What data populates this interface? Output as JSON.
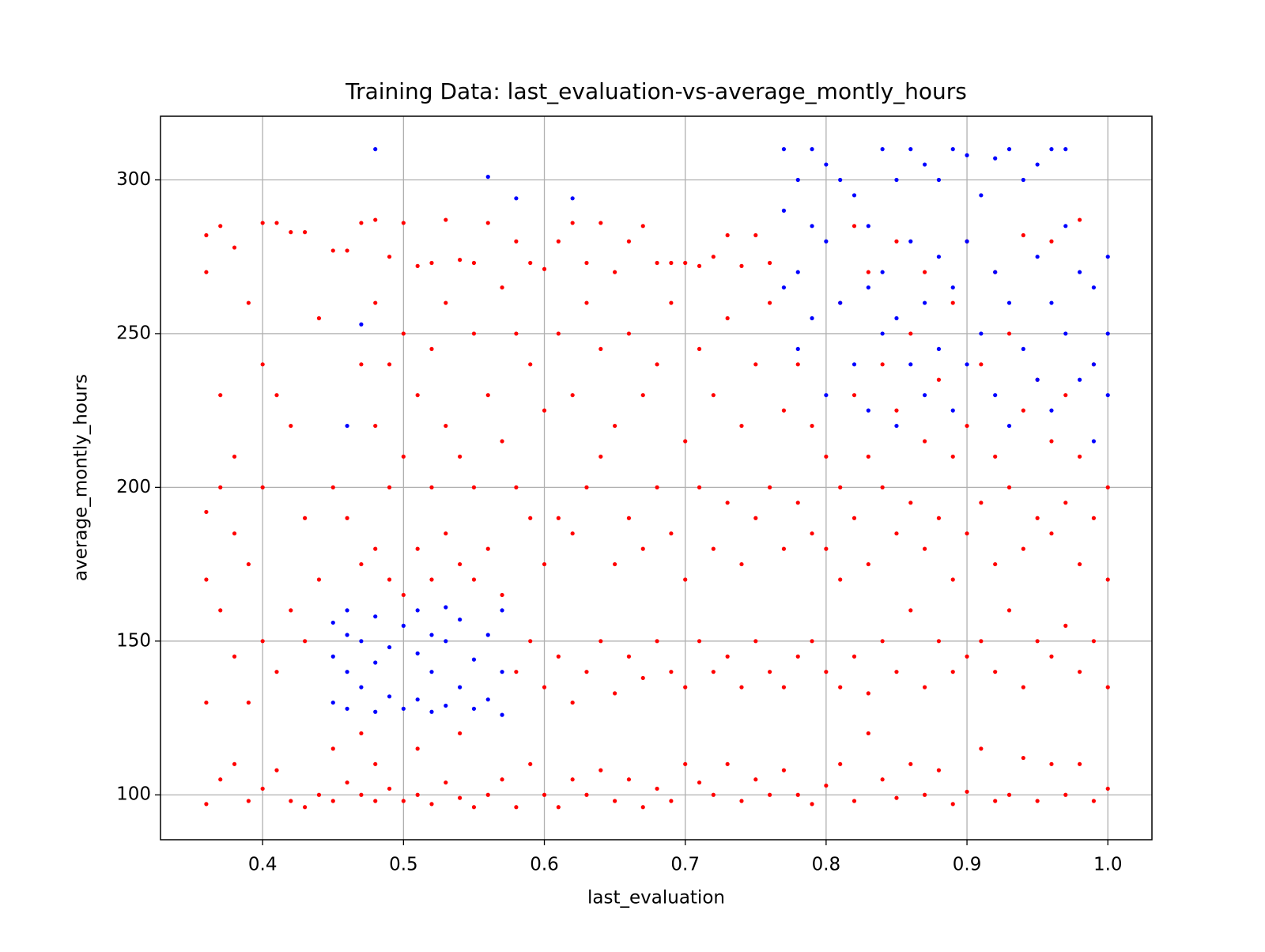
{
  "chart_data": {
    "type": "scatter",
    "title": "Training Data: last_evaluation-vs-average_montly_hours",
    "x_label": "last_evaluation",
    "y_label": "average_montly_hours",
    "xlim": [
      0.3275,
      1.0313
    ],
    "ylim": [
      85.4,
      320.7
    ],
    "xticks": [
      0.4,
      0.5,
      0.6,
      0.7,
      0.8,
      0.9,
      {
        "value": 1.0,
        "label": "1.0"
      }
    ],
    "yticks": [
      100,
      150,
      200,
      250,
      300
    ],
    "grid": true,
    "series": [
      {
        "color": "#ff0000",
        "x": [
          0.36,
          0.36,
          0.36,
          0.36,
          0.36,
          0.36,
          0.37,
          0.37,
          0.37,
          0.37,
          0.37,
          0.38,
          0.38,
          0.38,
          0.38,
          0.38,
          0.39,
          0.39,
          0.39,
          0.39,
          0.4,
          0.4,
          0.4,
          0.4,
          0.4,
          0.41,
          0.41,
          0.41,
          0.41,
          0.42,
          0.42,
          0.42,
          0.42,
          0.43,
          0.43,
          0.43,
          0.43,
          0.44,
          0.44,
          0.44,
          0.45,
          0.45,
          0.45,
          0.45,
          0.46,
          0.46,
          0.46,
          0.47,
          0.47,
          0.47,
          0.47,
          0.47,
          0.48,
          0.48,
          0.48,
          0.48,
          0.48,
          0.48,
          0.49,
          0.49,
          0.49,
          0.49,
          0.49,
          0.5,
          0.5,
          0.5,
          0.5,
          0.5,
          0.51,
          0.51,
          0.51,
          0.51,
          0.51,
          0.52,
          0.52,
          0.52,
          0.52,
          0.52,
          0.53,
          0.53,
          0.53,
          0.53,
          0.53,
          0.54,
          0.54,
          0.54,
          0.54,
          0.54,
          0.55,
          0.55,
          0.55,
          0.55,
          0.55,
          0.56,
          0.56,
          0.56,
          0.56,
          0.57,
          0.57,
          0.57,
          0.57,
          0.58,
          0.58,
          0.58,
          0.58,
          0.58,
          0.59,
          0.59,
          0.59,
          0.59,
          0.59,
          0.6,
          0.6,
          0.6,
          0.6,
          0.6,
          0.61,
          0.61,
          0.61,
          0.61,
          0.61,
          0.62,
          0.62,
          0.62,
          0.62,
          0.62,
          0.63,
          0.63,
          0.63,
          0.63,
          0.63,
          0.64,
          0.64,
          0.64,
          0.64,
          0.64,
          0.65,
          0.65,
          0.65,
          0.65,
          0.65,
          0.66,
          0.66,
          0.66,
          0.66,
          0.66,
          0.67,
          0.67,
          0.67,
          0.67,
          0.67,
          0.68,
          0.68,
          0.68,
          0.68,
          0.68,
          0.69,
          0.69,
          0.69,
          0.69,
          0.69,
          0.7,
          0.7,
          0.7,
          0.7,
          0.7,
          0.71,
          0.71,
          0.71,
          0.71,
          0.71,
          0.72,
          0.72,
          0.72,
          0.72,
          0.72,
          0.73,
          0.73,
          0.73,
          0.73,
          0.73,
          0.74,
          0.74,
          0.74,
          0.74,
          0.74,
          0.75,
          0.75,
          0.75,
          0.75,
          0.75,
          0.76,
          0.76,
          0.76,
          0.76,
          0.76,
          0.77,
          0.77,
          0.77,
          0.77,
          0.78,
          0.78,
          0.78,
          0.78,
          0.79,
          0.79,
          0.79,
          0.79,
          0.8,
          0.8,
          0.8,
          0.8,
          0.81,
          0.81,
          0.81,
          0.81,
          0.81,
          0.82,
          0.82,
          0.82,
          0.82,
          0.82,
          0.83,
          0.83,
          0.83,
          0.83,
          0.83,
          0.84,
          0.84,
          0.84,
          0.84,
          0.85,
          0.85,
          0.85,
          0.85,
          0.85,
          0.86,
          0.86,
          0.86,
          0.86,
          0.87,
          0.87,
          0.87,
          0.87,
          0.87,
          0.88,
          0.88,
          0.88,
          0.88,
          0.89,
          0.89,
          0.89,
          0.89,
          0.89,
          0.9,
          0.9,
          0.9,
          0.9,
          0.9,
          0.91,
          0.91,
          0.91,
          0.91,
          0.92,
          0.92,
          0.92,
          0.92,
          0.92,
          0.93,
          0.93,
          0.93,
          0.93,
          0.94,
          0.94,
          0.94,
          0.94,
          0.94,
          0.95,
          0.95,
          0.95,
          0.95,
          0.96,
          0.96,
          0.96,
          0.96,
          0.96,
          0.97,
          0.97,
          0.97,
          0.97,
          0.98,
          0.98,
          0.98,
          0.98,
          0.98,
          0.99,
          0.99,
          0.99,
          0.99,
          1.0,
          1.0,
          1.0,
          1.0
        ],
        "values": [
          97,
          130,
          170,
          192,
          270,
          282,
          105,
          160,
          200,
          230,
          285,
          110,
          145,
          185,
          210,
          278,
          98,
          130,
          175,
          260,
          102,
          150,
          200,
          240,
          286,
          108,
          140,
          230,
          286,
          98,
          160,
          220,
          283,
          96,
          150,
          190,
          283,
          100,
          170,
          255,
          98,
          115,
          200,
          277,
          104,
          190,
          277,
          100,
          120,
          175,
          240,
          286,
          98,
          110,
          180,
          220,
          260,
          287,
          102,
          170,
          200,
          240,
          275,
          98,
          165,
          210,
          250,
          286,
          100,
          115,
          180,
          230,
          272,
          97,
          170,
          200,
          245,
          273,
          104,
          185,
          220,
          260,
          287,
          99,
          120,
          175,
          210,
          274,
          96,
          170,
          200,
          250,
          273,
          100,
          180,
          230,
          286,
          105,
          165,
          215,
          265,
          96,
          140,
          200,
          250,
          280,
          110,
          150,
          190,
          240,
          273,
          100,
          135,
          175,
          225,
          271,
          96,
          145,
          190,
          250,
          280,
          105,
          130,
          185,
          230,
          286,
          100,
          140,
          200,
          260,
          273,
          108,
          150,
          210,
          245,
          286,
          98,
          133,
          175,
          220,
          270,
          105,
          145,
          190,
          250,
          280,
          96,
          138,
          180,
          230,
          285,
          102,
          150,
          200,
          240,
          273,
          98,
          140,
          185,
          260,
          273,
          110,
          135,
          170,
          215,
          273,
          104,
          150,
          200,
          245,
          272,
          100,
          140,
          180,
          230,
          275,
          110,
          145,
          195,
          255,
          282,
          98,
          135,
          175,
          220,
          272,
          105,
          150,
          190,
          240,
          282,
          100,
          140,
          200,
          260,
          273,
          108,
          135,
          180,
          225,
          100,
          145,
          195,
          240,
          97,
          150,
          185,
          220,
          103,
          140,
          180,
          210,
          110,
          135,
          170,
          200,
          260,
          98,
          145,
          190,
          230,
          285,
          120,
          133,
          175,
          210,
          270,
          105,
          150,
          200,
          240,
          99,
          140,
          185,
          225,
          280,
          110,
          160,
          195,
          250,
          100,
          135,
          180,
          215,
          270,
          108,
          150,
          190,
          235,
          97,
          140,
          170,
          210,
          260,
          101,
          145,
          185,
          220,
          280,
          115,
          150,
          195,
          240,
          98,
          140,
          175,
          210,
          270,
          100,
          160,
          200,
          250,
          112,
          135,
          180,
          225,
          282,
          98,
          150,
          190,
          235,
          110,
          145,
          185,
          215,
          280,
          100,
          155,
          195,
          230,
          110,
          140,
          175,
          210,
          287,
          98,
          150,
          190,
          240,
          102,
          135,
          170,
          200
        ]
      },
      {
        "color": "#0000ff",
        "x": [
          0.45,
          0.45,
          0.45,
          0.46,
          0.46,
          0.46,
          0.46,
          0.47,
          0.47,
          0.48,
          0.48,
          0.48,
          0.48,
          0.49,
          0.49,
          0.5,
          0.5,
          0.51,
          0.51,
          0.51,
          0.52,
          0.52,
          0.52,
          0.53,
          0.53,
          0.53,
          0.54,
          0.54,
          0.55,
          0.55,
          0.56,
          0.56,
          0.56,
          0.57,
          0.57,
          0.57,
          0.58,
          0.62,
          0.46,
          0.47,
          0.77,
          0.77,
          0.77,
          0.78,
          0.78,
          0.78,
          0.79,
          0.79,
          0.79,
          0.8,
          0.8,
          0.8,
          0.81,
          0.81,
          0.82,
          0.82,
          0.83,
          0.83,
          0.83,
          0.84,
          0.84,
          0.84,
          0.85,
          0.85,
          0.85,
          0.86,
          0.86,
          0.86,
          0.87,
          0.87,
          0.87,
          0.88,
          0.88,
          0.88,
          0.89,
          0.89,
          0.89,
          0.9,
          0.9,
          0.9,
          0.91,
          0.91,
          0.92,
          0.92,
          0.92,
          0.93,
          0.93,
          0.93,
          0.94,
          0.94,
          0.95,
          0.95,
          0.95,
          0.96,
          0.96,
          0.96,
          0.97,
          0.97,
          0.97,
          0.98,
          0.98,
          0.99,
          0.99,
          0.99,
          1.0,
          1.0,
          1.0
        ],
        "values": [
          130,
          145,
          156,
          128,
          140,
          152,
          160,
          135,
          150,
          127,
          143,
          158,
          310,
          132,
          148,
          128,
          155,
          131,
          146,
          160,
          127,
          140,
          152,
          129,
          150,
          161,
          135,
          157,
          128,
          144,
          131,
          152,
          301,
          126,
          140,
          160,
          294,
          294,
          220,
          253,
          310,
          290,
          265,
          300,
          270,
          245,
          310,
          285,
          255,
          305,
          280,
          230,
          300,
          260,
          295,
          240,
          285,
          265,
          225,
          310,
          270,
          250,
          300,
          255,
          220,
          310,
          280,
          240,
          305,
          260,
          230,
          300,
          275,
          245,
          310,
          265,
          225,
          308,
          280,
          240,
          295,
          250,
          307,
          270,
          230,
          310,
          260,
          220,
          300,
          245,
          305,
          275,
          235,
          310,
          260,
          225,
          310,
          285,
          250,
          270,
          235,
          265,
          240,
          215,
          275,
          250,
          230
        ]
      }
    ]
  }
}
